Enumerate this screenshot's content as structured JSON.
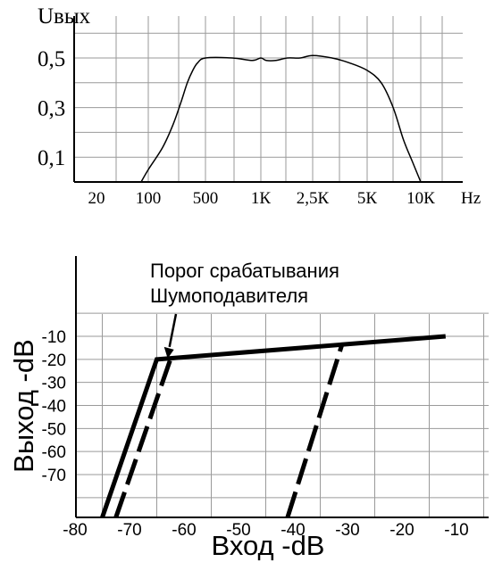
{
  "chart_data": [
    {
      "type": "line",
      "ylabel": "Uвых",
      "yticks": [
        "0,5",
        "0,3",
        "0,1"
      ],
      "ytick_values": [
        0.5,
        0.3,
        0.1
      ],
      "ylim": [
        0,
        0.6
      ],
      "xticks": [
        "20",
        "100",
        "500",
        "1К",
        "2,5К",
        "5К",
        "10К"
      ],
      "xticks_hz": [
        20,
        100,
        500,
        1000,
        2500,
        5000,
        10000
      ],
      "xunit": "Hz",
      "xscale": "log",
      "grid": true,
      "series": [
        {
          "x": [
            80,
            100,
            150,
            200,
            250,
            300,
            350,
            400,
            500,
            700,
            900,
            1000,
            1100,
            1300,
            1600,
            2000,
            2500,
            3200,
            4000,
            5000,
            6000,
            7000,
            8000,
            9000,
            10000
          ],
          "y": [
            0.0,
            0.05,
            0.14,
            0.23,
            0.32,
            0.4,
            0.45,
            0.48,
            0.5,
            0.5,
            0.49,
            0.5,
            0.49,
            0.49,
            0.5,
            0.5,
            0.51,
            0.5,
            0.48,
            0.45,
            0.4,
            0.3,
            0.17,
            0.08,
            0.0
          ]
        }
      ]
    },
    {
      "type": "line",
      "xlabel": "Вход -dB",
      "ylabel": "Выход -dB",
      "xticks": [
        "-80",
        "-70",
        "-60",
        "-50",
        "-40",
        "-30",
        "-20",
        "-10"
      ],
      "xtick_values": [
        -80,
        -70,
        -60,
        -50,
        -40,
        -30,
        -20,
        -10
      ],
      "yticks": [
        "-10",
        "-20",
        "-30",
        "-40",
        "-50",
        "-60",
        "-70"
      ],
      "ytick_values": [
        -10,
        -20,
        -30,
        -40,
        -50,
        -60,
        -70
      ],
      "xlim": [
        -81,
        -7
      ],
      "ylim": [
        -92,
        -3
      ],
      "grid": true,
      "annotation": {
        "lines": [
          "Порог срабатывания",
          "Шумоподавителя"
        ],
        "points_to": {
          "x": -63,
          "y": -20
        }
      },
      "series": [
        {
          "style": "solid",
          "x": [
            -75,
            -65,
            -12
          ],
          "y": [
            -92,
            -20,
            -10
          ]
        },
        {
          "style": "dashed",
          "x": [
            -72.5,
            -62.5
          ],
          "y": [
            -92,
            -20
          ]
        },
        {
          "style": "dashed",
          "x": [
            -41,
            -31
          ],
          "y": [
            -92,
            -13.5
          ]
        }
      ]
    }
  ]
}
